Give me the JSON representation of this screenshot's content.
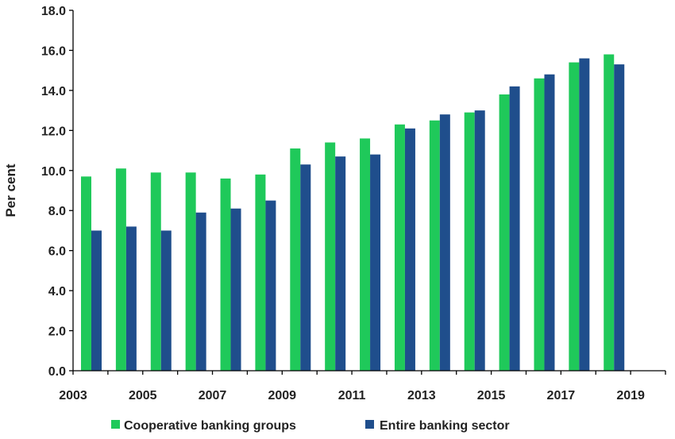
{
  "chart_data": {
    "type": "bar",
    "ylabel": "Per cent",
    "ylim": [
      0,
      18
    ],
    "y_ticks": [
      "0.0",
      "2.0",
      "4.0",
      "6.0",
      "8.0",
      "10.0",
      "12.0",
      "14.0",
      "16.0",
      "18.0"
    ],
    "x_tick_labels": [
      "2003",
      "2005",
      "2007",
      "2009",
      "2011",
      "2013",
      "2015",
      "2017",
      "2019"
    ],
    "categories": [
      "2003",
      "2004",
      "2005",
      "2006",
      "2007",
      "2008",
      "2009",
      "2010",
      "2011",
      "2012",
      "2013",
      "2014",
      "2015",
      "2016",
      "2017",
      "2018"
    ],
    "series": [
      {
        "name": "Cooperative banking groups",
        "color": "#1fc95a",
        "values": [
          9.7,
          10.1,
          9.9,
          9.9,
          9.6,
          9.8,
          11.1,
          11.4,
          11.6,
          12.3,
          12.5,
          12.9,
          13.8,
          14.6,
          15.4,
          15.8
        ]
      },
      {
        "name": "Entire banking sector",
        "color": "#1f4e8c",
        "values": [
          7.0,
          7.2,
          7.0,
          7.9,
          8.1,
          8.5,
          10.3,
          10.7,
          10.8,
          12.1,
          12.8,
          13.0,
          14.2,
          14.8,
          15.6,
          15.3
        ]
      }
    ],
    "grid": false,
    "legend": "bottom"
  }
}
